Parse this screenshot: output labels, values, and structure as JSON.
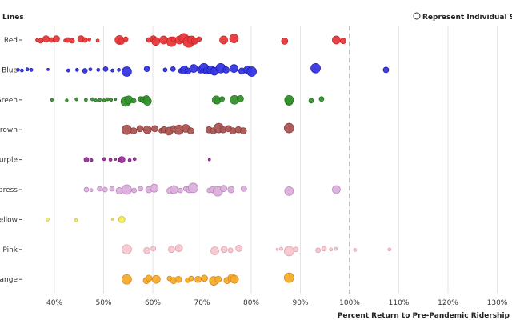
{
  "chart_data": {
    "type": "scatter",
    "subtype": "beeswarm",
    "yAxisTitle": "Lines",
    "xAxisTitle": "Percent Return to Pre-Pandemic Ridership",
    "legend": {
      "label": "Represent Individual Stations",
      "placement": "top-right"
    },
    "xlim": [
      35,
      131
    ],
    "xticks": [
      40,
      50,
      60,
      70,
      80,
      90,
      100,
      110,
      120,
      130
    ],
    "tickSuffix": "%",
    "referenceLine": 100,
    "lines": [
      {
        "name": "Red",
        "color": "#e8383b",
        "stroke": "#c22326",
        "points": [
          [
            36.5,
            2
          ],
          [
            37.2,
            3
          ],
          [
            38.3,
            4
          ],
          [
            39.4,
            3
          ],
          [
            40.4,
            4
          ],
          [
            42.2,
            2
          ],
          [
            42.7,
            3
          ],
          [
            43.6,
            3
          ],
          [
            45.4,
            4
          ],
          [
            46.2,
            3
          ],
          [
            47.1,
            2
          ],
          [
            48.8,
            2
          ],
          [
            53.2,
            5.5
          ],
          [
            53.6,
            4
          ],
          [
            54.5,
            3
          ],
          [
            59.2,
            3
          ],
          [
            60.1,
            4
          ],
          [
            60.6,
            5
          ],
          [
            62.2,
            5
          ],
          [
            63.8,
            6
          ],
          [
            64.2,
            3
          ],
          [
            65.4,
            5
          ],
          [
            66.3,
            6
          ],
          [
            67.3,
            7
          ],
          [
            67.9,
            5
          ],
          [
            68.5,
            4
          ],
          [
            69.4,
            3
          ],
          [
            74.4,
            5
          ],
          [
            76.5,
            5.5
          ],
          [
            86.8,
            4
          ],
          [
            97.3,
            5
          ],
          [
            98.7,
            3.5
          ]
        ]
      },
      {
        "name": "Blue",
        "color": "#3535e0",
        "stroke": "#1c1cb0",
        "points": [
          [
            32.6,
            2
          ],
          [
            33.4,
            2
          ],
          [
            34.5,
            2
          ],
          [
            35.3,
            2
          ],
          [
            38.7,
            1.5
          ],
          [
            42.8,
            2
          ],
          [
            44.6,
            2
          ],
          [
            46.2,
            3
          ],
          [
            47.3,
            2
          ],
          [
            48.9,
            2
          ],
          [
            50.4,
            3
          ],
          [
            51.8,
            2
          ],
          [
            53.1,
            2
          ],
          [
            54.7,
            6
          ],
          [
            58.8,
            3.5
          ],
          [
            62.5,
            2.5
          ],
          [
            64.1,
            3
          ],
          [
            65.7,
            3
          ],
          [
            66.4,
            5
          ],
          [
            67.1,
            4
          ],
          [
            68.3,
            5
          ],
          [
            69.7,
            4
          ],
          [
            70.4,
            6
          ],
          [
            70.9,
            4
          ],
          [
            71.8,
            5
          ],
          [
            72.5,
            5
          ],
          [
            73.8,
            6
          ],
          [
            74.9,
            4
          ],
          [
            76.5,
            5
          ],
          [
            78.1,
            4
          ],
          [
            79.3,
            5
          ],
          [
            80.1,
            6
          ],
          [
            93.1,
            6
          ],
          [
            107.4,
            3.5
          ]
        ]
      },
      {
        "name": "Green",
        "color": "#35922e",
        "stroke": "#236f1d",
        "points": [
          [
            39.5,
            1.8
          ],
          [
            42.5,
            1.8
          ],
          [
            44.5,
            2
          ],
          [
            46.4,
            2
          ],
          [
            47.7,
            2
          ],
          [
            48.4,
            2
          ],
          [
            49.2,
            2
          ],
          [
            50.1,
            2
          ],
          [
            50.8,
            2
          ],
          [
            51.5,
            2
          ],
          [
            52.4,
            1.5
          ],
          [
            54.5,
            6
          ],
          [
            55.1,
            5
          ],
          [
            56.1,
            3
          ],
          [
            57.5,
            3
          ],
          [
            58.1,
            4
          ],
          [
            58.7,
            4
          ],
          [
            58.9,
            5
          ],
          [
            72.9,
            5
          ],
          [
            73.1,
            4
          ],
          [
            74.1,
            3
          ],
          [
            76.6,
            5.5
          ],
          [
            77.8,
            4
          ],
          [
            87.7,
            5
          ],
          [
            87.7,
            5.5
          ],
          [
            92.2,
            3
          ],
          [
            94.3,
            3
          ]
        ]
      },
      {
        "name": "Brown",
        "color": "#ab5553",
        "stroke": "#833b3a",
        "points": [
          [
            54.7,
            6
          ],
          [
            56.1,
            4
          ],
          [
            57.4,
            4
          ],
          [
            58.9,
            5
          ],
          [
            60.4,
            4
          ],
          [
            61.7,
            3
          ],
          [
            62.3,
            4
          ],
          [
            63.3,
            5
          ],
          [
            64.2,
            4
          ],
          [
            65.3,
            6
          ],
          [
            66.7,
            5
          ],
          [
            67.7,
            4
          ],
          [
            71.4,
            4
          ],
          [
            72.3,
            4
          ],
          [
            73.4,
            6
          ],
          [
            74.3,
            4
          ],
          [
            75.4,
            4
          ],
          [
            76.3,
            4
          ],
          [
            77.4,
            4
          ],
          [
            78.4,
            4
          ],
          [
            87.7,
            6
          ]
        ]
      },
      {
        "name": "Purple",
        "color": "#9b2f9b",
        "stroke": "#762276",
        "points": [
          [
            46.5,
            3
          ],
          [
            47.5,
            2
          ],
          [
            50.1,
            2
          ],
          [
            51.4,
            2
          ],
          [
            52.4,
            1.5
          ],
          [
            53.2,
            2
          ],
          [
            53.7,
            4
          ],
          [
            55.3,
            2
          ],
          [
            56.3,
            2
          ],
          [
            71.5,
            1.5
          ]
        ]
      },
      {
        "name": "Express",
        "color": "#dcb0dd",
        "stroke": "#b47fb6",
        "points": [
          [
            46.5,
            3
          ],
          [
            47.5,
            2
          ],
          [
            49.2,
            3
          ],
          [
            50.3,
            3
          ],
          [
            51.7,
            3
          ],
          [
            53.2,
            4
          ],
          [
            54.7,
            6
          ],
          [
            56.2,
            3
          ],
          [
            57.5,
            3
          ],
          [
            59.2,
            4
          ],
          [
            60.3,
            5
          ],
          [
            63.5,
            4
          ],
          [
            64.3,
            5
          ],
          [
            65.6,
            3
          ],
          [
            66.7,
            3
          ],
          [
            67.4,
            4
          ],
          [
            68.2,
            6
          ],
          [
            71.5,
            3
          ],
          [
            72.2,
            4
          ],
          [
            73.2,
            6
          ],
          [
            74.4,
            4
          ],
          [
            75.9,
            4
          ],
          [
            78.5,
            3.5
          ],
          [
            87.7,
            5.5
          ],
          [
            97.3,
            5
          ]
        ]
      },
      {
        "name": "Yellow",
        "color": "#f2ec55",
        "stroke": "#c7be2a",
        "points": [
          [
            38.6,
            2
          ],
          [
            44.4,
            2
          ],
          [
            51.8,
            1.5
          ],
          [
            53.7,
            4
          ]
        ]
      },
      {
        "name": "Pink",
        "color": "#f7c6cf",
        "stroke": "#dc9ba8",
        "points": [
          [
            54.7,
            6
          ],
          [
            58.8,
            4
          ],
          [
            60.1,
            3
          ],
          [
            63.8,
            4
          ],
          [
            65.3,
            4.5
          ],
          [
            72.6,
            5
          ],
          [
            74.5,
            4
          ],
          [
            75.8,
            3
          ],
          [
            77.5,
            4
          ],
          [
            85.3,
            1.5
          ],
          [
            86.1,
            2
          ],
          [
            87.7,
            6
          ],
          [
            89.1,
            3
          ],
          [
            93.6,
            3
          ],
          [
            94.8,
            3
          ],
          [
            96.2,
            2
          ],
          [
            97.2,
            2
          ],
          [
            101.1,
            2
          ],
          [
            108.1,
            2
          ]
        ]
      },
      {
        "name": "Orange",
        "color": "#f5ac2c",
        "stroke": "#cc851a",
        "points": [
          [
            54.7,
            6
          ],
          [
            58.7,
            4
          ],
          [
            59.2,
            4
          ],
          [
            60.7,
            5
          ],
          [
            63.4,
            3
          ],
          [
            64.2,
            4
          ],
          [
            65.2,
            4
          ],
          [
            67.1,
            3
          ],
          [
            67.8,
            3
          ],
          [
            69.2,
            4
          ],
          [
            70.5,
            4
          ],
          [
            72.4,
            5.5
          ],
          [
            73.3,
            4
          ],
          [
            75.1,
            4
          ],
          [
            76.1,
            5
          ],
          [
            76.6,
            5
          ],
          [
            87.7,
            6
          ]
        ]
      }
    ]
  }
}
